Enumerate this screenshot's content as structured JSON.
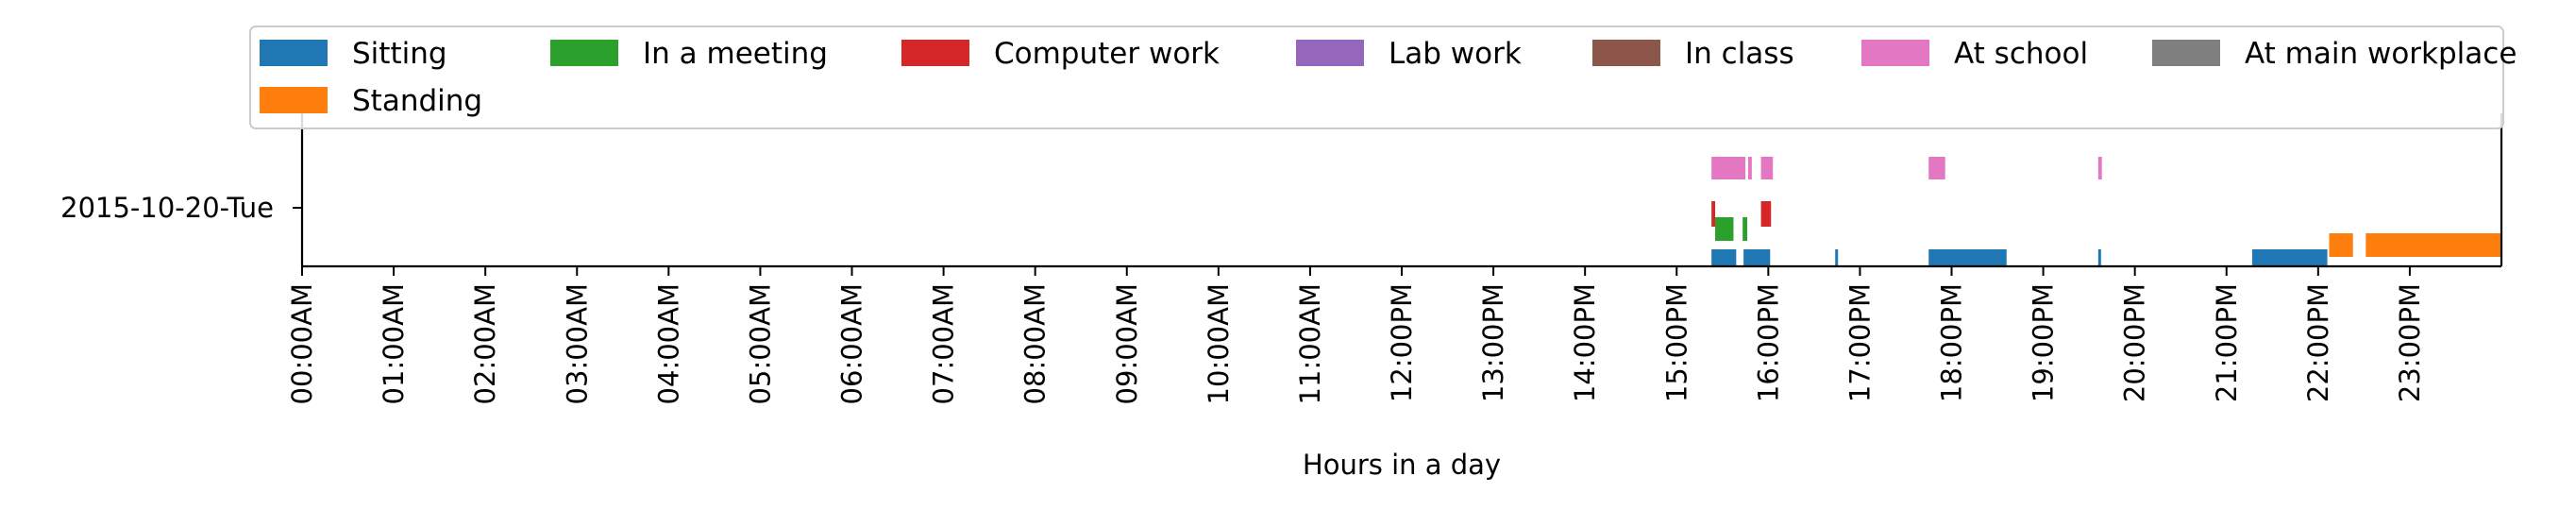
{
  "chart_data": {
    "type": "timeline",
    "xlabel": "Hours in a day",
    "y_category": "2015-10-20-Tue",
    "x_unit": "hour",
    "xlim": [
      0,
      24
    ],
    "x_ticks": [
      {
        "value": 0,
        "label": "00:00AM"
      },
      {
        "value": 1,
        "label": "01:00AM"
      },
      {
        "value": 2,
        "label": "02:00AM"
      },
      {
        "value": 3,
        "label": "03:00AM"
      },
      {
        "value": 4,
        "label": "04:00AM"
      },
      {
        "value": 5,
        "label": "05:00AM"
      },
      {
        "value": 6,
        "label": "06:00AM"
      },
      {
        "value": 7,
        "label": "07:00AM"
      },
      {
        "value": 8,
        "label": "08:00AM"
      },
      {
        "value": 9,
        "label": "09:00AM"
      },
      {
        "value": 10,
        "label": "10:00AM"
      },
      {
        "value": 11,
        "label": "11:00AM"
      },
      {
        "value": 12,
        "label": "12:00PM"
      },
      {
        "value": 13,
        "label": "13:00PM"
      },
      {
        "value": 14,
        "label": "14:00PM"
      },
      {
        "value": 15,
        "label": "15:00PM"
      },
      {
        "value": 16,
        "label": "16:00PM"
      },
      {
        "value": 17,
        "label": "17:00PM"
      },
      {
        "value": 18,
        "label": "18:00PM"
      },
      {
        "value": 19,
        "label": "19:00PM"
      },
      {
        "value": 20,
        "label": "20:00PM"
      },
      {
        "value": 21,
        "label": "21:00PM"
      },
      {
        "value": 22,
        "label": "22:00PM"
      },
      {
        "value": 23,
        "label": "23:00PM"
      }
    ],
    "legend_position": "top",
    "grid": false,
    "series": [
      {
        "name": "Sitting",
        "color": "#1f77b4",
        "intervals": [
          [
            15.38,
            15.65
          ],
          [
            15.73,
            16.02
          ],
          [
            16.73,
            16.76
          ],
          [
            17.75,
            18.6
          ],
          [
            19.6,
            19.63
          ],
          [
            21.28,
            22.1
          ]
        ]
      },
      {
        "name": "Standing",
        "color": "#ff7f0e",
        "intervals": [
          [
            22.12,
            22.38
          ],
          [
            22.52,
            24.0
          ]
        ]
      },
      {
        "name": "In a meeting",
        "color": "#2ca02c",
        "intervals": [
          [
            15.42,
            15.62
          ],
          [
            15.72,
            15.77
          ]
        ]
      },
      {
        "name": "Computer work",
        "color": "#d62728",
        "intervals": [
          [
            15.38,
            15.42
          ],
          [
            15.92,
            16.03
          ]
        ]
      },
      {
        "name": "Lab work",
        "color": "#9467bd",
        "intervals": []
      },
      {
        "name": "In class",
        "color": "#8c564b",
        "intervals": []
      },
      {
        "name": "At school",
        "color": "#e377c2",
        "intervals": [
          [
            15.38,
            15.75
          ],
          [
            15.78,
            15.82
          ],
          [
            15.92,
            16.05
          ],
          [
            17.75,
            17.93
          ],
          [
            19.6,
            19.64
          ]
        ]
      },
      {
        "name": "At main workplace",
        "color": "#7f7f7f",
        "intervals": []
      }
    ]
  }
}
